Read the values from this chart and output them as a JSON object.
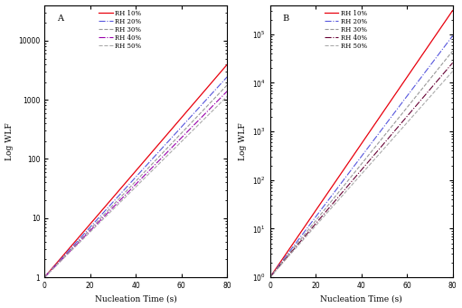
{
  "panel_labels": [
    "A",
    "B"
  ],
  "xlabel": "Nucleation Time (s)",
  "ylabel": "Log WLF",
  "xlim": [
    0,
    80
  ],
  "xticks": [
    0,
    20,
    40,
    60,
    80
  ],
  "rh_labels": [
    "RH 10%",
    "RH 20%",
    "RH 30%",
    "RH 40%",
    "RH 50%"
  ],
  "colors_A": [
    "#e8000d",
    "#5555dd",
    "#999999",
    "#9900aa",
    "#aaaaaa"
  ],
  "colors_B": [
    "#e8000d",
    "#5555dd",
    "#999999",
    "#660033",
    "#aaaaaa"
  ],
  "linestyles": [
    "-",
    "-.",
    "--",
    "-.",
    "--"
  ],
  "linewidths": [
    0.9,
    0.8,
    0.8,
    0.8,
    0.8
  ],
  "slopes_A": [
    0.1035,
    0.0975,
    0.0935,
    0.0905,
    0.088
  ],
  "slopes_B": [
    0.158,
    0.143,
    0.134,
    0.127,
    0.122
  ],
  "intercept_A": 1.0,
  "intercept_B": 1.0,
  "ylim_A": [
    1,
    40000
  ],
  "ylim_B": [
    1,
    400000
  ],
  "background_color": "#ffffff",
  "legend_fontsize": 5.0,
  "tick_fontsize": 5.5,
  "label_fontsize": 6.5,
  "panel_label_fontsize": 7
}
